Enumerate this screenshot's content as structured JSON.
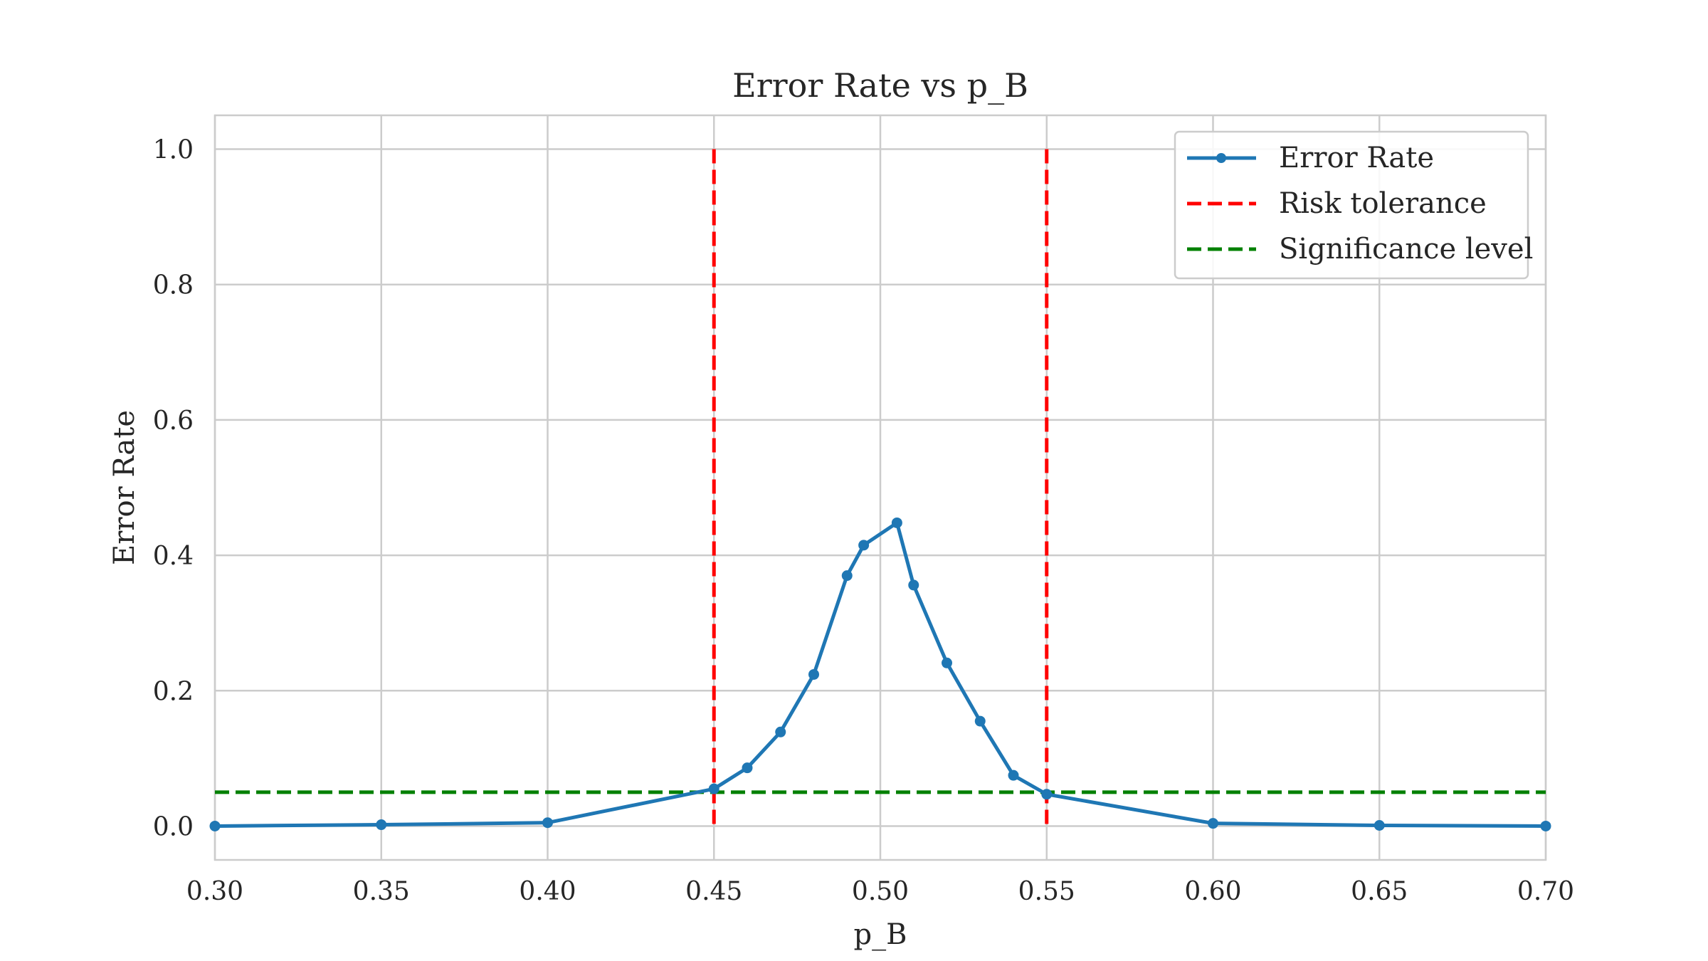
{
  "chart_data": {
    "type": "line",
    "title": "Error Rate vs p_B",
    "xlabel": "p_B",
    "ylabel": "Error Rate",
    "xlim": [
      0.3,
      0.7
    ],
    "ylim": [
      -0.05,
      1.05
    ],
    "xticks": [
      0.3,
      0.35,
      0.4,
      0.45,
      0.5,
      0.55,
      0.6,
      0.65,
      0.7
    ],
    "yticks": [
      0.0,
      0.2,
      0.4,
      0.6,
      0.8,
      1.0
    ],
    "xtick_labels": [
      "0.30",
      "0.35",
      "0.40",
      "0.45",
      "0.50",
      "0.55",
      "0.60",
      "0.65",
      "0.70"
    ],
    "ytick_labels": [
      "0.0",
      "0.2",
      "0.4",
      "0.6",
      "0.8",
      "1.0"
    ],
    "grid": true,
    "legend_position": "top-right",
    "series": [
      {
        "name": "Error Rate",
        "color": "#1f77b4",
        "marker": "circle",
        "x": [
          0.3,
          0.35,
          0.4,
          0.45,
          0.46,
          0.47,
          0.48,
          0.49,
          0.495,
          0.505,
          0.51,
          0.52,
          0.53,
          0.54,
          0.55,
          0.6,
          0.65,
          0.7
        ],
        "y": [
          0.0,
          0.002,
          0.005,
          0.055,
          0.086,
          0.139,
          0.224,
          0.37,
          0.415,
          0.448,
          0.356,
          0.241,
          0.155,
          0.075,
          0.047,
          0.004,
          0.001,
          0.0
        ]
      }
    ],
    "reference_lines": [
      {
        "name": "Risk tolerance",
        "orientation": "vertical",
        "value": 0.45,
        "y_range": [
          0,
          1
        ],
        "color": "#ff0000",
        "style": "dashed"
      },
      {
        "name": "Risk tolerance",
        "orientation": "vertical",
        "value": 0.55,
        "y_range": [
          0,
          1
        ],
        "color": "#ff0000",
        "style": "dashed"
      },
      {
        "name": "Significance level",
        "orientation": "horizontal",
        "value": 0.05,
        "color": "#008000",
        "style": "dashed"
      }
    ],
    "legend": [
      {
        "label": "Error Rate",
        "color": "#1f77b4",
        "style": "solid-marker"
      },
      {
        "label": "Risk tolerance",
        "color": "#ff0000",
        "style": "dashed"
      },
      {
        "label": "Significance level",
        "color": "#008000",
        "style": "dashed"
      }
    ]
  }
}
